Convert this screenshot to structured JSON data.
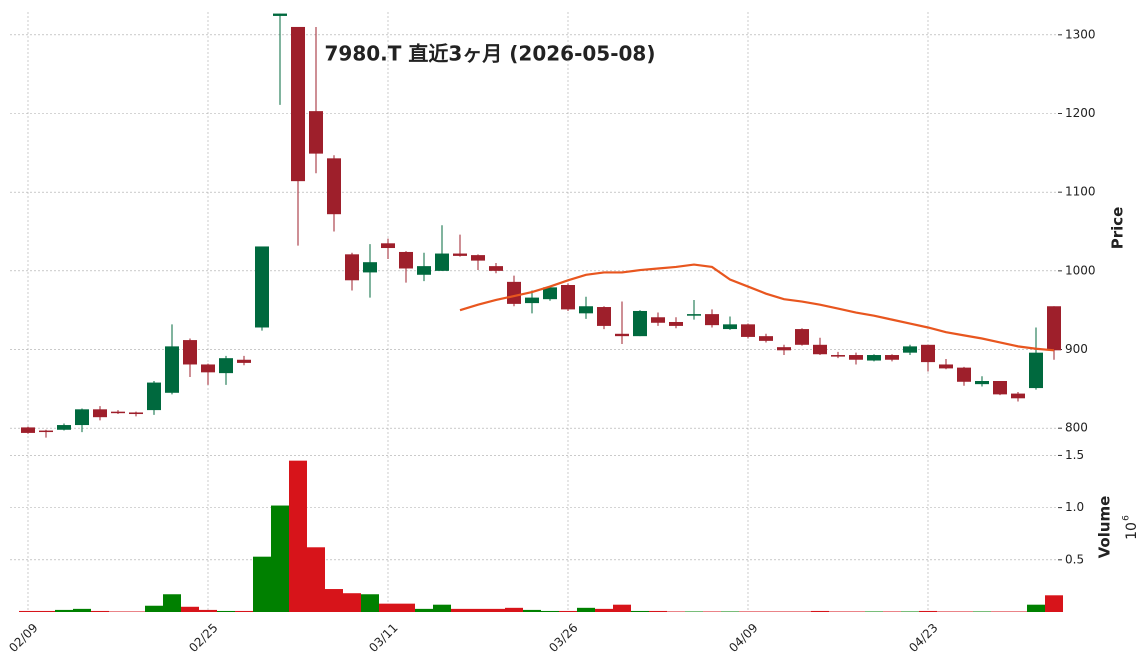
{
  "chart_data": {
    "type": "candlestick",
    "title": "7980.T 直近3ヶ月 (2026-05-08)",
    "y_label": "Price",
    "volume_label": "Volume",
    "volume_scale_base": "10",
    "volume_scale_exponent": "6",
    "categories": [
      "02/09",
      null,
      null,
      null,
      null,
      null,
      null,
      null,
      null,
      null,
      "02/25",
      null,
      null,
      null,
      null,
      null,
      null,
      null,
      null,
      null,
      "03/11",
      null,
      null,
      null,
      null,
      null,
      null,
      null,
      null,
      null,
      "03/26",
      null,
      null,
      null,
      null,
      null,
      null,
      null,
      null,
      null,
      "04/09",
      null,
      null,
      null,
      null,
      null,
      null,
      null,
      null,
      null,
      "04/23",
      null,
      null,
      null,
      null,
      null,
      null,
      null
    ],
    "open": [
      801,
      797,
      798,
      804,
      824,
      821,
      820,
      823,
      845,
      912,
      881,
      870,
      887,
      928,
      1324,
      1310,
      1203,
      1143,
      1021,
      998,
      1035,
      1024,
      995,
      1000,
      1022,
      1020,
      1006,
      986,
      959,
      964,
      982,
      946,
      954,
      920,
      917,
      941,
      935,
      943,
      945,
      926,
      932,
      917,
      903,
      926,
      906,
      893,
      893,
      886,
      893,
      896,
      906,
      881,
      877,
      856,
      860,
      844,
      851,
      955
    ],
    "high": [
      802,
      798,
      806,
      825,
      828,
      823,
      821,
      860,
      932,
      914,
      882,
      892,
      892,
      1031,
      1327,
      1310,
      1310,
      1147,
      1023,
      1034,
      1041,
      1025,
      1023,
      1058,
      1046,
      1021,
      1010,
      994,
      975,
      981,
      984,
      967,
      955,
      961,
      950,
      947,
      941,
      963,
      951,
      942,
      933,
      920,
      906,
      927,
      915,
      897,
      896,
      894,
      894,
      906,
      906,
      888,
      878,
      866,
      860,
      846,
      928,
      955
    ],
    "low": [
      793,
      788,
      797,
      795,
      810,
      818,
      815,
      817,
      843,
      865,
      855,
      855,
      880,
      924,
      1211,
      1032,
      1124,
      1050,
      975,
      966,
      1015,
      985,
      987,
      1000,
      1018,
      1001,
      997,
      955,
      946,
      962,
      949,
      939,
      926,
      907,
      917,
      930,
      927,
      938,
      928,
      925,
      914,
      909,
      893,
      905,
      893,
      889,
      881,
      885,
      885,
      893,
      872,
      875,
      854,
      853,
      842,
      834,
      849,
      887
    ],
    "close": [
      794,
      796,
      804,
      824,
      814,
      820,
      818,
      858,
      904,
      881,
      871,
      889,
      883,
      1031,
      1327,
      1114,
      1149,
      1072,
      988,
      1011,
      1029,
      1003,
      1006,
      1022,
      1019,
      1013,
      1000,
      958,
      966,
      979,
      951,
      955,
      930,
      917,
      949,
      934,
      930,
      945,
      931,
      932,
      916,
      911,
      899,
      906,
      894,
      891,
      887,
      893,
      887,
      904,
      884,
      876,
      859,
      860,
      843,
      838,
      896,
      899
    ],
    "volume": [
      0.01,
      0.01,
      0.02,
      0.03,
      0.01,
      0.005,
      0.005,
      0.06,
      0.17,
      0.05,
      0.02,
      0.01,
      0.01,
      0.53,
      1.02,
      1.45,
      0.62,
      0.22,
      0.18,
      0.17,
      0.08,
      0.08,
      0.03,
      0.07,
      0.03,
      0.03,
      0.03,
      0.04,
      0.02,
      0.01,
      0.01,
      0.04,
      0.03,
      0.07,
      0.01,
      0.01,
      0.005,
      0.005,
      0.005,
      0.005,
      0.005,
      0.005,
      0.005,
      0.005,
      0.01,
      0.005,
      0.005,
      0.005,
      0.005,
      0.005,
      0.01,
      0.005,
      0.005,
      0.005,
      0.005,
      0.005,
      0.07,
      0.16
    ],
    "ma": {
      "color": "#e8561f",
      "values": [
        null,
        null,
        null,
        null,
        null,
        null,
        null,
        null,
        null,
        null,
        null,
        null,
        null,
        null,
        null,
        null,
        null,
        null,
        null,
        null,
        null,
        null,
        null,
        null,
        950,
        957,
        963,
        968,
        973,
        980,
        988,
        995,
        998,
        998,
        1001,
        1003,
        1005,
        1008,
        1005,
        989,
        980,
        971,
        964,
        961,
        957,
        952,
        947,
        943,
        938,
        933,
        928,
        922,
        918,
        914,
        909,
        904,
        901,
        899
      ]
    },
    "up_color": "#00693e",
    "down_color": "#9e1f2b",
    "volume_up_color": "#008000",
    "volume_down_color": "#d7141a",
    "ylim": [
      785,
      1329
    ],
    "yticks": [
      800,
      900,
      1000,
      1100,
      1200,
      1300
    ],
    "volume_ylim": [
      0,
      1.6
    ],
    "volume_ticks": [
      0.5,
      {
        "value": 1,
        "label": "1.0"
      },
      1.5
    ],
    "grid": true
  }
}
